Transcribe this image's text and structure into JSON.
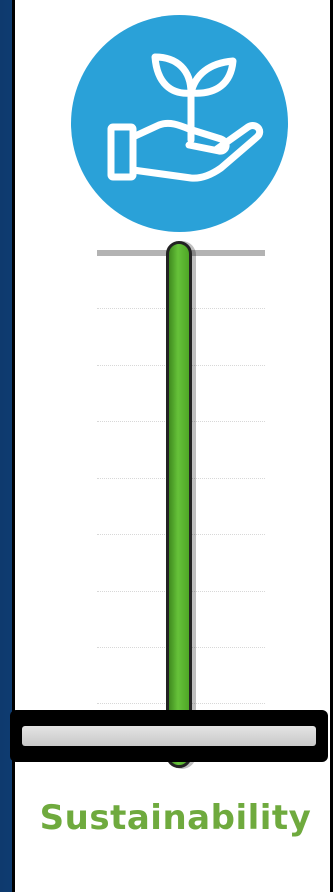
{
  "label": "Sustainability",
  "icon": "plant-in-hand-icon",
  "level": 1.0,
  "colors": {
    "icon_background": "#2aa1d8",
    "bar": "#5cb232",
    "label": "#6faa3e"
  }
}
